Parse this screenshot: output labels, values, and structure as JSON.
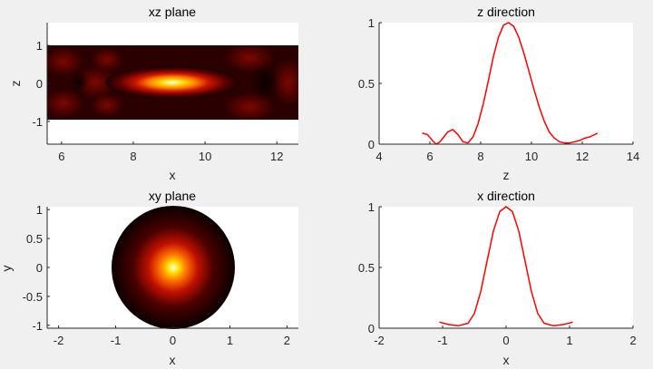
{
  "colors": {
    "background": "#f0f0f0",
    "axes_background": "#ffffff",
    "line": "#ff0000",
    "axis": "#262626",
    "colormap": [
      "#000000",
      "#6e0000",
      "#d02000",
      "#ff7a00",
      "#ffd000",
      "#ffffe6"
    ]
  },
  "chart_data": [
    {
      "type": "heatmap",
      "title": "xz plane",
      "xlabel": "x",
      "ylabel": "z",
      "xlim": [
        5.6,
        12.6
      ],
      "ylim": [
        -1.6,
        1.6
      ],
      "xticks": [
        6,
        8,
        10,
        12
      ],
      "xtick_labels": [
        "6",
        "8",
        "10",
        "12"
      ],
      "yticks": [
        1,
        0,
        -1
      ],
      "ytick_labels": [
        "1",
        "0",
        "-1"
      ],
      "domain": {
        "x": [
          5.6,
          12.6
        ],
        "z": [
          -1.05,
          1.05
        ]
      },
      "colormap": "hot",
      "hotspot": {
        "x": 9.1,
        "z": 0,
        "peak": 1.0
      }
    },
    {
      "type": "line",
      "title": "z direction",
      "xlabel": "z",
      "ylabel": "",
      "xlim": [
        4,
        14
      ],
      "ylim": [
        0,
        1
      ],
      "xticks": [
        4,
        6,
        8,
        10,
        12,
        14
      ],
      "xtick_labels": [
        "4",
        "6",
        "8",
        "10",
        "12",
        "14"
      ],
      "yticks": [
        1,
        0.5,
        0
      ],
      "ytick_labels": [
        "1",
        "0.5",
        "0"
      ],
      "series": [
        {
          "color": "#ff0000",
          "x": [
            5.7,
            5.9,
            6.1,
            6.25,
            6.4,
            6.55,
            6.7,
            6.9,
            7.1,
            7.3,
            7.5,
            7.7,
            7.9,
            8.1,
            8.3,
            8.5,
            8.7,
            8.9,
            9.1,
            9.3,
            9.5,
            9.7,
            9.9,
            10.1,
            10.3,
            10.5,
            10.7,
            10.9,
            11.1,
            11.3,
            11.5,
            11.7,
            11.9,
            12.1,
            12.3,
            12.6
          ],
          "y": [
            0.09,
            0.08,
            0.03,
            0.0,
            0.02,
            0.06,
            0.1,
            0.12,
            0.08,
            0.02,
            0.01,
            0.06,
            0.17,
            0.33,
            0.52,
            0.72,
            0.88,
            0.98,
            1.0,
            0.97,
            0.88,
            0.75,
            0.6,
            0.45,
            0.31,
            0.19,
            0.1,
            0.05,
            0.02,
            0.01,
            0.01,
            0.02,
            0.03,
            0.05,
            0.06,
            0.09
          ]
        }
      ]
    },
    {
      "type": "heatmap",
      "title": "xy plane",
      "xlabel": "x",
      "ylabel": "y",
      "xlim": [
        -2.2,
        2.2
      ],
      "ylim": [
        -1.05,
        1.05
      ],
      "xticks": [
        -2,
        -1,
        0,
        1,
        2
      ],
      "xtick_labels": [
        "-2",
        "-1",
        "0",
        "1",
        "2"
      ],
      "yticks": [
        1,
        0.5,
        0,
        -0.5,
        -1
      ],
      "ytick_labels": [
        "1",
        "0.5",
        "0",
        "-0.5",
        "-1"
      ],
      "domain": {
        "radius": 1.05
      },
      "colormap": "hot",
      "hotspot": {
        "x": 0,
        "y": 0,
        "peak": 1.0
      }
    },
    {
      "type": "line",
      "title": "x direction",
      "xlabel": "x",
      "ylabel": "",
      "xlim": [
        -2,
        2
      ],
      "ylim": [
        0,
        1
      ],
      "xticks": [
        -2,
        -1,
        0,
        1,
        2
      ],
      "xtick_labels": [
        "-2",
        "-1",
        "0",
        "1",
        "2"
      ],
      "yticks": [
        1,
        0.5,
        0
      ],
      "ytick_labels": [
        "1",
        "0.5",
        "0"
      ],
      "series": [
        {
          "color": "#ff0000",
          "x": [
            -1.05,
            -0.9,
            -0.75,
            -0.6,
            -0.5,
            -0.4,
            -0.3,
            -0.2,
            -0.1,
            0.0,
            0.1,
            0.2,
            0.3,
            0.4,
            0.5,
            0.6,
            0.75,
            0.9,
            1.05
          ],
          "y": [
            0.05,
            0.03,
            0.02,
            0.04,
            0.12,
            0.3,
            0.55,
            0.8,
            0.96,
            1.0,
            0.96,
            0.8,
            0.55,
            0.3,
            0.12,
            0.04,
            0.02,
            0.03,
            0.05
          ]
        }
      ]
    }
  ]
}
